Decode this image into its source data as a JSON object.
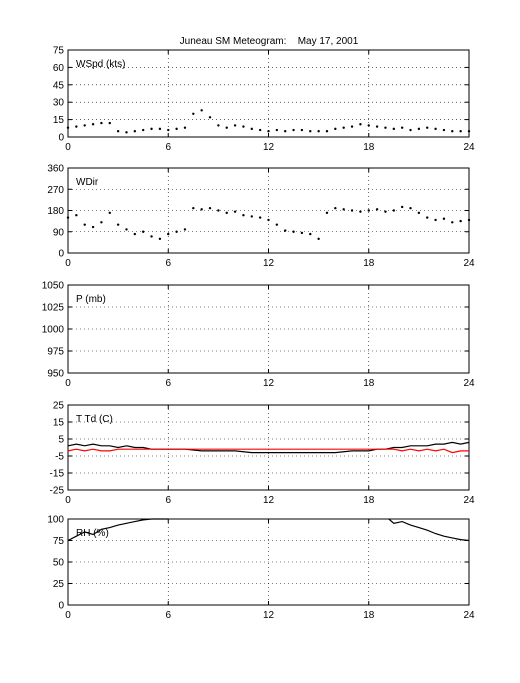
{
  "figure": {
    "title_station": "Juneau SM Meteogram:",
    "title_date": "May 17, 2001"
  },
  "chart_data": [
    {
      "type": "scatter",
      "label": "WSpd (kts)",
      "xlim": [
        0,
        24
      ],
      "ylim": [
        0,
        75
      ],
      "xticks": [
        0,
        6,
        12,
        18,
        24
      ],
      "yticks": [
        0,
        15,
        30,
        45,
        60,
        75
      ],
      "grid": true,
      "series": [
        {
          "color": "#000000",
          "style": "dots",
          "x": [
            0,
            0.5,
            1,
            1.5,
            2,
            2.5,
            3,
            3.5,
            4,
            4.5,
            5,
            5.5,
            6,
            6.5,
            7,
            7.5,
            8,
            8.5,
            9,
            9.5,
            10,
            10.5,
            11,
            11.5,
            12,
            12.5,
            13,
            13.5,
            14,
            14.5,
            15,
            15.5,
            16,
            16.5,
            17,
            17.5,
            18,
            18.5,
            19,
            19.5,
            20,
            20.5,
            21,
            21.5,
            22,
            22.5,
            23,
            23.5,
            24
          ],
          "y": [
            8,
            9,
            10,
            11,
            12,
            12,
            5,
            4,
            5,
            6,
            7,
            7,
            6,
            7,
            8,
            20,
            23,
            17,
            10,
            8,
            10,
            9,
            7,
            6,
            5,
            6,
            5,
            6,
            6,
            5,
            5,
            5,
            7,
            8,
            9,
            11,
            10,
            9,
            8,
            7,
            8,
            6,
            7,
            8,
            7,
            6,
            5,
            5,
            5
          ]
        }
      ]
    },
    {
      "type": "scatter",
      "label": "WDir",
      "xlim": [
        0,
        24
      ],
      "ylim": [
        0,
        360
      ],
      "xticks": [
        0,
        6,
        12,
        18,
        24
      ],
      "yticks": [
        0,
        90,
        180,
        270,
        360
      ],
      "grid": true,
      "series": [
        {
          "color": "#000000",
          "style": "dots",
          "x": [
            0,
            0.5,
            1,
            1.5,
            2,
            2.5,
            3,
            3.5,
            4,
            4.5,
            5,
            5.5,
            6,
            6.5,
            7,
            7.5,
            8,
            8.5,
            9,
            9.5,
            10,
            10.5,
            11,
            11.5,
            12,
            12.5,
            13,
            13.5,
            14,
            14.5,
            15,
            15.5,
            16,
            16.5,
            17,
            17.5,
            18,
            18.5,
            19,
            19.5,
            20,
            20.5,
            21,
            21.5,
            22,
            22.5,
            23,
            23.5,
            24
          ],
          "y": [
            150,
            160,
            120,
            110,
            130,
            170,
            120,
            100,
            80,
            90,
            70,
            60,
            80,
            90,
            100,
            190,
            185,
            190,
            180,
            170,
            175,
            160,
            155,
            150,
            140,
            120,
            95,
            90,
            85,
            80,
            60,
            170,
            190,
            185,
            180,
            175,
            180,
            185,
            175,
            180,
            195,
            190,
            170,
            150,
            140,
            145,
            130,
            135,
            140
          ]
        }
      ]
    },
    {
      "type": "line",
      "label": "P (mb)",
      "xlim": [
        0,
        24
      ],
      "ylim": [
        950,
        1050
      ],
      "xticks": [
        0,
        6,
        12,
        18,
        24
      ],
      "yticks": [
        950,
        975,
        1000,
        1025,
        1050
      ],
      "grid": true,
      "series": []
    },
    {
      "type": "line",
      "label": "T Td (C)",
      "xlim": [
        0,
        24
      ],
      "ylim": [
        -25,
        25
      ],
      "xticks": [
        0,
        6,
        12,
        18,
        24
      ],
      "yticks": [
        -25,
        -15,
        -5,
        5,
        15,
        25
      ],
      "grid": true,
      "series": [
        {
          "color": "#000000",
          "style": "line",
          "x": [
            0,
            0.5,
            1,
            1.5,
            2,
            2.5,
            3,
            3.5,
            4,
            4.5,
            5,
            6,
            7,
            8,
            9,
            10,
            11,
            12,
            13,
            14,
            15,
            16,
            17,
            18,
            18.5,
            19,
            19.5,
            20,
            20.5,
            21,
            21.5,
            22,
            22.5,
            23,
            23.5,
            24
          ],
          "y": [
            1,
            2,
            1,
            2,
            1,
            1,
            0,
            1,
            0,
            0,
            -1,
            -1,
            -1,
            -2,
            -2,
            -2,
            -3,
            -3,
            -3,
            -3,
            -3,
            -3,
            -2,
            -2,
            -1,
            -1,
            0,
            0,
            1,
            1,
            1,
            2,
            2,
            3,
            2,
            3
          ]
        },
        {
          "color": "#ff0000",
          "style": "line",
          "x": [
            0,
            0.5,
            1,
            1.5,
            2,
            2.5,
            3,
            3.5,
            4,
            19.5,
            20,
            20.5,
            21,
            21.5,
            22,
            22.5,
            23,
            23.5,
            24
          ],
          "y": [
            -2,
            -1,
            -2,
            -1,
            -2,
            -2,
            -1,
            -1,
            -1,
            -1,
            -2,
            -1,
            -2,
            -1,
            -2,
            -1,
            -3,
            -2,
            -2
          ]
        }
      ]
    },
    {
      "type": "line",
      "label": "RH (%)",
      "xlim": [
        0,
        24
      ],
      "ylim": [
        0,
        100
      ],
      "xticks": [
        0,
        6,
        12,
        18,
        24
      ],
      "yticks": [
        0,
        25,
        50,
        75,
        100
      ],
      "grid": true,
      "series": [
        {
          "color": "#000000",
          "style": "line",
          "x": [
            0,
            0.5,
            1,
            1.5,
            2,
            2.5,
            3,
            3.5,
            4,
            4.5,
            5,
            5.5,
            6
          ],
          "y": [
            75,
            80,
            85,
            82,
            88,
            90,
            93,
            95,
            97,
            99,
            100,
            100,
            100
          ]
        },
        {
          "color": "#000000",
          "style": "line",
          "x": [
            19.2,
            19.5,
            20,
            20.5,
            21,
            21.5,
            22,
            22.5,
            23,
            23.5,
            24
          ],
          "y": [
            100,
            95,
            97,
            93,
            90,
            87,
            83,
            80,
            78,
            76,
            75
          ]
        }
      ]
    }
  ]
}
